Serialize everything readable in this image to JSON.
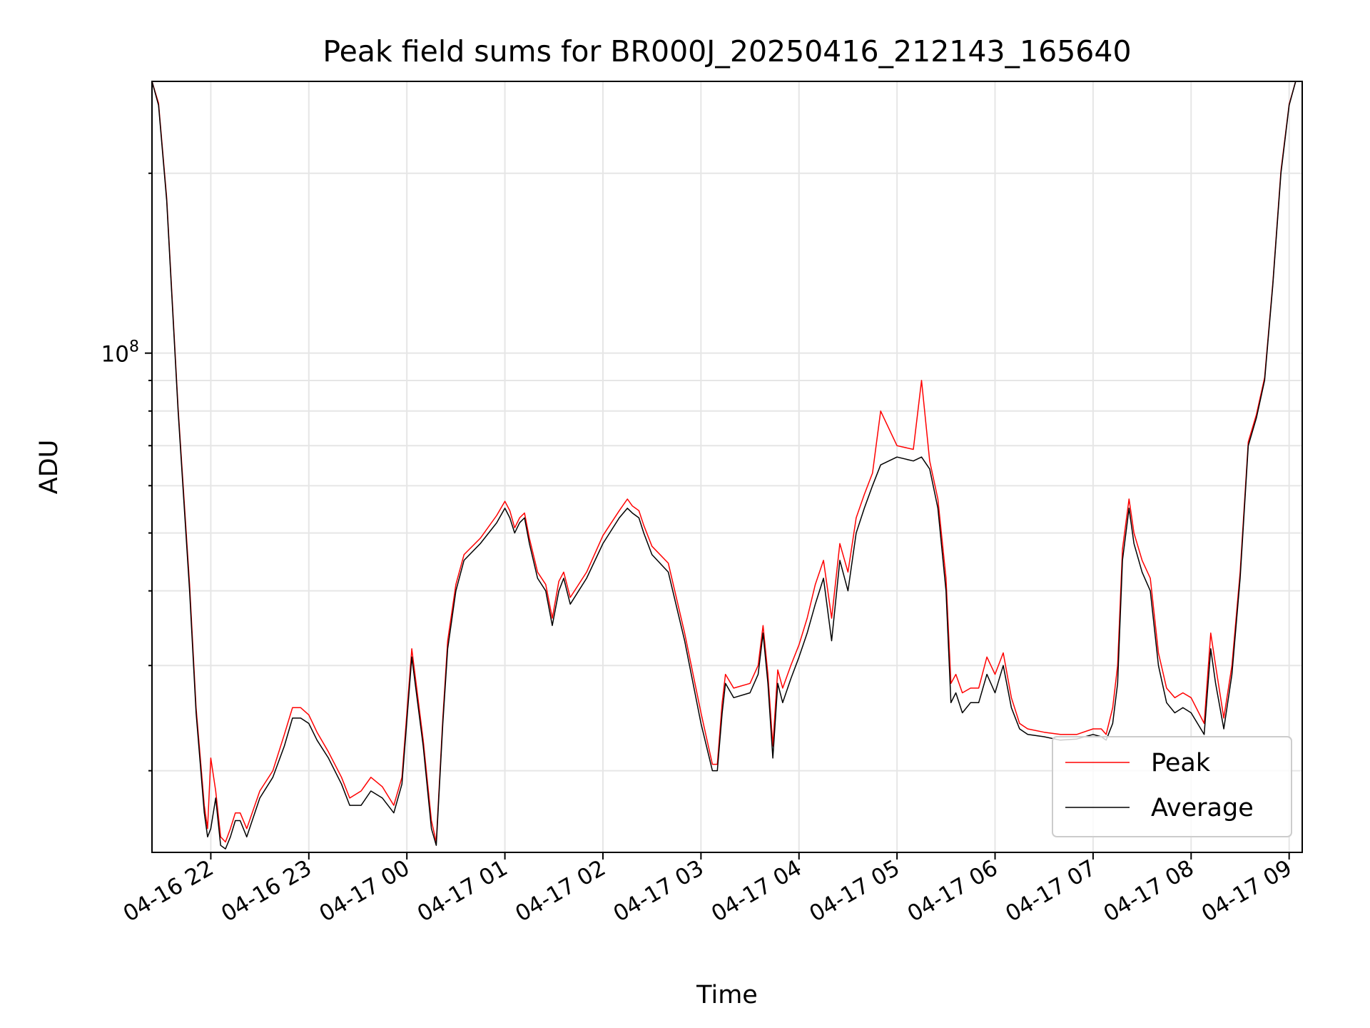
{
  "chart_data": {
    "type": "line",
    "title": "Peak field sums for BR000J_20250416_212143_165640",
    "xlabel": "Time",
    "ylabel": "ADU",
    "yscale": "log",
    "ylim": [
      14600000,
      285000000
    ],
    "xlim": [
      "2025-04-16 21:24",
      "2025-04-17 09:08"
    ],
    "grid": true,
    "legend_position": "lower right",
    "x_tick_labels": [
      "04-16 22",
      "04-16 23",
      "04-17 00",
      "04-17 01",
      "04-17 02",
      "04-17 03",
      "04-17 04",
      "04-17 05",
      "04-17 06",
      "04-17 07",
      "04-17 08",
      "04-17 09"
    ],
    "y_tick_labels": [
      {
        "base": "10",
        "exp": "8",
        "value": 100000000
      }
    ],
    "colors": {
      "Peak": "#ff0000",
      "Average": "#000000"
    },
    "series": [
      {
        "name": "Peak",
        "color": "#ff0000"
      },
      {
        "name": "Average",
        "color": "#000000"
      }
    ],
    "x": [
      "2025-04-16 21:24",
      "2025-04-16 21:28",
      "2025-04-16 21:33",
      "2025-04-16 21:40",
      "2025-04-16 21:47",
      "2025-04-16 21:51",
      "2025-04-16 21:56",
      "2025-04-16 21:58",
      "2025-04-16 22:00",
      "2025-04-16 22:03",
      "2025-04-16 22:06",
      "2025-04-16 22:09",
      "2025-04-16 22:12",
      "2025-04-16 22:15",
      "2025-04-16 22:18",
      "2025-04-16 22:22",
      "2025-04-16 22:30",
      "2025-04-16 22:38",
      "2025-04-16 22:45",
      "2025-04-16 22:50",
      "2025-04-16 22:55",
      "2025-04-16 23:00",
      "2025-04-16 23:05",
      "2025-04-16 23:12",
      "2025-04-16 23:20",
      "2025-04-16 23:25",
      "2025-04-16 23:32",
      "2025-04-16 23:38",
      "2025-04-16 23:45",
      "2025-04-16 23:52",
      "2025-04-16 23:57",
      "2025-04-17 00:03",
      "2025-04-17 00:10",
      "2025-04-17 00:15",
      "2025-04-17 00:18",
      "2025-04-17 00:22",
      "2025-04-17 00:25",
      "2025-04-17 00:30",
      "2025-04-17 00:35",
      "2025-04-17 00:45",
      "2025-04-17 00:55",
      "2025-04-17 01:00",
      "2025-04-17 01:03",
      "2025-04-17 01:06",
      "2025-04-17 01:09",
      "2025-04-17 01:12",
      "2025-04-17 01:15",
      "2025-04-17 01:20",
      "2025-04-17 01:25",
      "2025-04-17 01:29",
      "2025-04-17 01:33",
      "2025-04-17 01:36",
      "2025-04-17 01:40",
      "2025-04-17 01:50",
      "2025-04-17 02:00",
      "2025-04-17 02:10",
      "2025-04-17 02:15",
      "2025-04-17 02:18",
      "2025-04-17 02:22",
      "2025-04-17 02:25",
      "2025-04-17 02:30",
      "2025-04-17 02:40",
      "2025-04-17 02:50",
      "2025-04-17 03:00",
      "2025-04-17 03:07",
      "2025-04-17 03:10",
      "2025-04-17 03:13",
      "2025-04-17 03:15",
      "2025-04-17 03:20",
      "2025-04-17 03:30",
      "2025-04-17 03:35",
      "2025-04-17 03:38",
      "2025-04-17 03:41",
      "2025-04-17 03:44",
      "2025-04-17 03:47",
      "2025-04-17 03:50",
      "2025-04-17 03:55",
      "2025-04-17 04:00",
      "2025-04-17 04:05",
      "2025-04-17 04:10",
      "2025-04-17 04:15",
      "2025-04-17 04:20",
      "2025-04-17 04:25",
      "2025-04-17 04:30",
      "2025-04-17 04:35",
      "2025-04-17 04:40",
      "2025-04-17 04:45",
      "2025-04-17 04:50",
      "2025-04-17 05:00",
      "2025-04-17 05:10",
      "2025-04-17 05:15",
      "2025-04-17 05:20",
      "2025-04-17 05:25",
      "2025-04-17 05:30",
      "2025-04-17 05:33",
      "2025-04-17 05:36",
      "2025-04-17 05:40",
      "2025-04-17 05:45",
      "2025-04-17 05:50",
      "2025-04-17 05:55",
      "2025-04-17 06:00",
      "2025-04-17 06:05",
      "2025-04-17 06:10",
      "2025-04-17 06:15",
      "2025-04-17 06:20",
      "2025-04-17 06:30",
      "2025-04-17 06:40",
      "2025-04-17 06:50",
      "2025-04-17 07:00",
      "2025-04-17 07:05",
      "2025-04-17 07:08",
      "2025-04-17 07:12",
      "2025-04-17 07:15",
      "2025-04-17 07:18",
      "2025-04-17 07:22",
      "2025-04-17 07:25",
      "2025-04-17 07:30",
      "2025-04-17 07:35",
      "2025-04-17 07:40",
      "2025-04-17 07:45",
      "2025-04-17 07:50",
      "2025-04-17 07:55",
      "2025-04-17 08:00",
      "2025-04-17 08:08",
      "2025-04-17 08:12",
      "2025-04-17 08:15",
      "2025-04-17 08:20",
      "2025-04-17 08:25",
      "2025-04-17 08:30",
      "2025-04-17 08:35",
      "2025-04-17 08:40",
      "2025-04-17 08:45",
      "2025-04-17 08:50",
      "2025-04-17 08:55",
      "2025-04-17 09:00",
      "2025-04-17 09:04",
      "2025-04-17 09:08"
    ],
    "average_values": [
      285000000,
      260000000,
      180000000,
      80000000,
      40000000,
      25000000,
      17000000,
      15500000,
      16000000,
      18000000,
      15000000,
      14800000,
      15500000,
      16500000,
      16500000,
      15500000,
      18000000,
      19500000,
      22000000,
      24500000,
      24500000,
      24000000,
      22500000,
      21000000,
      19000000,
      17500000,
      17500000,
      18500000,
      18000000,
      17000000,
      19000000,
      31000000,
      22000000,
      16000000,
      15000000,
      24000000,
      32000000,
      40000000,
      45000000,
      48000000,
      52000000,
      55000000,
      53000000,
      50000000,
      52000000,
      53000000,
      48000000,
      42000000,
      40000000,
      35000000,
      40000000,
      42000000,
      38000000,
      42000000,
      48000000,
      53000000,
      55000000,
      54000000,
      53000000,
      50000000,
      46000000,
      43000000,
      33000000,
      24000000,
      20000000,
      20000000,
      25000000,
      28000000,
      26500000,
      27000000,
      29000000,
      34000000,
      28000000,
      21000000,
      28000000,
      26000000,
      28500000,
      31000000,
      34000000,
      38000000,
      42000000,
      33000000,
      45000000,
      40000000,
      50000000,
      55000000,
      60000000,
      65000000,
      67000000,
      66000000,
      67000000,
      64000000,
      55000000,
      40000000,
      26000000,
      27000000,
      25000000,
      26000000,
      26000000,
      29000000,
      27000000,
      30000000,
      25500000,
      23500000,
      23000000,
      22800000,
      22500000,
      22600000,
      23000000,
      22800000,
      22500000,
      24000000,
      28000000,
      45000000,
      55000000,
      48000000,
      43000000,
      40000000,
      30000000,
      26000000,
      25000000,
      25500000,
      25000000,
      23000000,
      32000000,
      28000000,
      23500000,
      29000000,
      42000000,
      70000000,
      78000000,
      90000000,
      130000000,
      200000000,
      260000000,
      285000000
    ],
    "peak_values": [
      285000000,
      262000000,
      182000000,
      81000000,
      41000000,
      25500000,
      17500000,
      16000000,
      21000000,
      18500000,
      15500000,
      15200000,
      16000000,
      17000000,
      17000000,
      16000000,
      18500000,
      20000000,
      23000000,
      25500000,
      25500000,
      24800000,
      23200000,
      21500000,
      19500000,
      18000000,
      18500000,
      19500000,
      18800000,
      17500000,
      19500000,
      32000000,
      22500000,
      16500000,
      15200000,
      24500000,
      33000000,
      41000000,
      46000000,
      49000000,
      53500000,
      56500000,
      54500000,
      51000000,
      53000000,
      54000000,
      49000000,
      43000000,
      41000000,
      36000000,
      41500000,
      43000000,
      39000000,
      43000000,
      49500000,
      54500000,
      57000000,
      55500000,
      54500000,
      51500000,
      47500000,
      44500000,
      34000000,
      25000000,
      20500000,
      20500000,
      26000000,
      29000000,
      27500000,
      28000000,
      30000000,
      35000000,
      29000000,
      22000000,
      29500000,
      27500000,
      30000000,
      32500000,
      36000000,
      41000000,
      45000000,
      36000000,
      48000000,
      43000000,
      53000000,
      58000000,
      63000000,
      80000000,
      70000000,
      69000000,
      90000000,
      66000000,
      57000000,
      42000000,
      28000000,
      29000000,
      27000000,
      27500000,
      27500000,
      31000000,
      29000000,
      31500000,
      26500000,
      24000000,
      23500000,
      23200000,
      23000000,
      23000000,
      23500000,
      23500000,
      23000000,
      25500000,
      30000000,
      47000000,
      57000000,
      50000000,
      45000000,
      42000000,
      31500000,
      27500000,
      26500000,
      27000000,
      26500000,
      24000000,
      34000000,
      30000000,
      24500000,
      30000000,
      43000000,
      71000000,
      79000000,
      91000000,
      131000000,
      202000000,
      261000000,
      285000000
    ]
  }
}
